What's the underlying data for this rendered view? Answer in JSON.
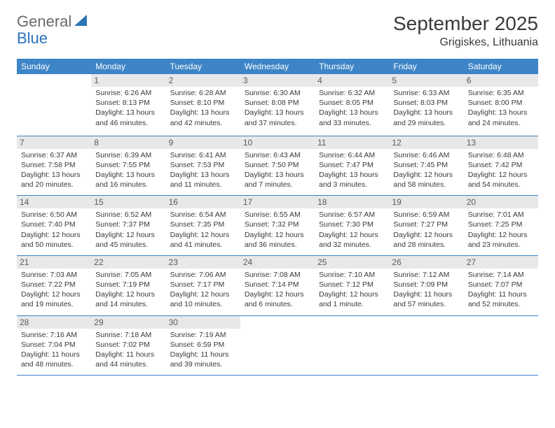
{
  "logo": {
    "text1": "General",
    "text2": "Blue"
  },
  "colors": {
    "header_bg": "#3d85c6",
    "header_fg": "#ffffff",
    "daynum_bg": "#e8e8e8",
    "daynum_fg": "#5a5a5a",
    "text": "#3a3a3a",
    "rule": "#3d85c6",
    "logo_gray": "#6a6a6a",
    "logo_blue": "#2d73b8"
  },
  "title": "September 2025",
  "location": "Grigiskes, Lithuania",
  "weekdays": [
    "Sunday",
    "Monday",
    "Tuesday",
    "Wednesday",
    "Thursday",
    "Friday",
    "Saturday"
  ],
  "weeks": [
    [
      null,
      {
        "d": "1",
        "sr": "Sunrise: 6:26 AM",
        "ss": "Sunset: 8:13 PM",
        "dl1": "Daylight: 13 hours",
        "dl2": "and 46 minutes."
      },
      {
        "d": "2",
        "sr": "Sunrise: 6:28 AM",
        "ss": "Sunset: 8:10 PM",
        "dl1": "Daylight: 13 hours",
        "dl2": "and 42 minutes."
      },
      {
        "d": "3",
        "sr": "Sunrise: 6:30 AM",
        "ss": "Sunset: 8:08 PM",
        "dl1": "Daylight: 13 hours",
        "dl2": "and 37 minutes."
      },
      {
        "d": "4",
        "sr": "Sunrise: 6:32 AM",
        "ss": "Sunset: 8:05 PM",
        "dl1": "Daylight: 13 hours",
        "dl2": "and 33 minutes."
      },
      {
        "d": "5",
        "sr": "Sunrise: 6:33 AM",
        "ss": "Sunset: 8:03 PM",
        "dl1": "Daylight: 13 hours",
        "dl2": "and 29 minutes."
      },
      {
        "d": "6",
        "sr": "Sunrise: 6:35 AM",
        "ss": "Sunset: 8:00 PM",
        "dl1": "Daylight: 13 hours",
        "dl2": "and 24 minutes."
      }
    ],
    [
      {
        "d": "7",
        "sr": "Sunrise: 6:37 AM",
        "ss": "Sunset: 7:58 PM",
        "dl1": "Daylight: 13 hours",
        "dl2": "and 20 minutes."
      },
      {
        "d": "8",
        "sr": "Sunrise: 6:39 AM",
        "ss": "Sunset: 7:55 PM",
        "dl1": "Daylight: 13 hours",
        "dl2": "and 16 minutes."
      },
      {
        "d": "9",
        "sr": "Sunrise: 6:41 AM",
        "ss": "Sunset: 7:53 PM",
        "dl1": "Daylight: 13 hours",
        "dl2": "and 11 minutes."
      },
      {
        "d": "10",
        "sr": "Sunrise: 6:43 AM",
        "ss": "Sunset: 7:50 PM",
        "dl1": "Daylight: 13 hours",
        "dl2": "and 7 minutes."
      },
      {
        "d": "11",
        "sr": "Sunrise: 6:44 AM",
        "ss": "Sunset: 7:47 PM",
        "dl1": "Daylight: 13 hours",
        "dl2": "and 3 minutes."
      },
      {
        "d": "12",
        "sr": "Sunrise: 6:46 AM",
        "ss": "Sunset: 7:45 PM",
        "dl1": "Daylight: 12 hours",
        "dl2": "and 58 minutes."
      },
      {
        "d": "13",
        "sr": "Sunrise: 6:48 AM",
        "ss": "Sunset: 7:42 PM",
        "dl1": "Daylight: 12 hours",
        "dl2": "and 54 minutes."
      }
    ],
    [
      {
        "d": "14",
        "sr": "Sunrise: 6:50 AM",
        "ss": "Sunset: 7:40 PM",
        "dl1": "Daylight: 12 hours",
        "dl2": "and 50 minutes."
      },
      {
        "d": "15",
        "sr": "Sunrise: 6:52 AM",
        "ss": "Sunset: 7:37 PM",
        "dl1": "Daylight: 12 hours",
        "dl2": "and 45 minutes."
      },
      {
        "d": "16",
        "sr": "Sunrise: 6:54 AM",
        "ss": "Sunset: 7:35 PM",
        "dl1": "Daylight: 12 hours",
        "dl2": "and 41 minutes."
      },
      {
        "d": "17",
        "sr": "Sunrise: 6:55 AM",
        "ss": "Sunset: 7:32 PM",
        "dl1": "Daylight: 12 hours",
        "dl2": "and 36 minutes."
      },
      {
        "d": "18",
        "sr": "Sunrise: 6:57 AM",
        "ss": "Sunset: 7:30 PM",
        "dl1": "Daylight: 12 hours",
        "dl2": "and 32 minutes."
      },
      {
        "d": "19",
        "sr": "Sunrise: 6:59 AM",
        "ss": "Sunset: 7:27 PM",
        "dl1": "Daylight: 12 hours",
        "dl2": "and 28 minutes."
      },
      {
        "d": "20",
        "sr": "Sunrise: 7:01 AM",
        "ss": "Sunset: 7:25 PM",
        "dl1": "Daylight: 12 hours",
        "dl2": "and 23 minutes."
      }
    ],
    [
      {
        "d": "21",
        "sr": "Sunrise: 7:03 AM",
        "ss": "Sunset: 7:22 PM",
        "dl1": "Daylight: 12 hours",
        "dl2": "and 19 minutes."
      },
      {
        "d": "22",
        "sr": "Sunrise: 7:05 AM",
        "ss": "Sunset: 7:19 PM",
        "dl1": "Daylight: 12 hours",
        "dl2": "and 14 minutes."
      },
      {
        "d": "23",
        "sr": "Sunrise: 7:06 AM",
        "ss": "Sunset: 7:17 PM",
        "dl1": "Daylight: 12 hours",
        "dl2": "and 10 minutes."
      },
      {
        "d": "24",
        "sr": "Sunrise: 7:08 AM",
        "ss": "Sunset: 7:14 PM",
        "dl1": "Daylight: 12 hours",
        "dl2": "and 6 minutes."
      },
      {
        "d": "25",
        "sr": "Sunrise: 7:10 AM",
        "ss": "Sunset: 7:12 PM",
        "dl1": "Daylight: 12 hours",
        "dl2": "and 1 minute."
      },
      {
        "d": "26",
        "sr": "Sunrise: 7:12 AM",
        "ss": "Sunset: 7:09 PM",
        "dl1": "Daylight: 11 hours",
        "dl2": "and 57 minutes."
      },
      {
        "d": "27",
        "sr": "Sunrise: 7:14 AM",
        "ss": "Sunset: 7:07 PM",
        "dl1": "Daylight: 11 hours",
        "dl2": "and 52 minutes."
      }
    ],
    [
      {
        "d": "28",
        "sr": "Sunrise: 7:16 AM",
        "ss": "Sunset: 7:04 PM",
        "dl1": "Daylight: 11 hours",
        "dl2": "and 48 minutes."
      },
      {
        "d": "29",
        "sr": "Sunrise: 7:18 AM",
        "ss": "Sunset: 7:02 PM",
        "dl1": "Daylight: 11 hours",
        "dl2": "and 44 minutes."
      },
      {
        "d": "30",
        "sr": "Sunrise: 7:19 AM",
        "ss": "Sunset: 6:59 PM",
        "dl1": "Daylight: 11 hours",
        "dl2": "and 39 minutes."
      },
      null,
      null,
      null,
      null
    ]
  ]
}
